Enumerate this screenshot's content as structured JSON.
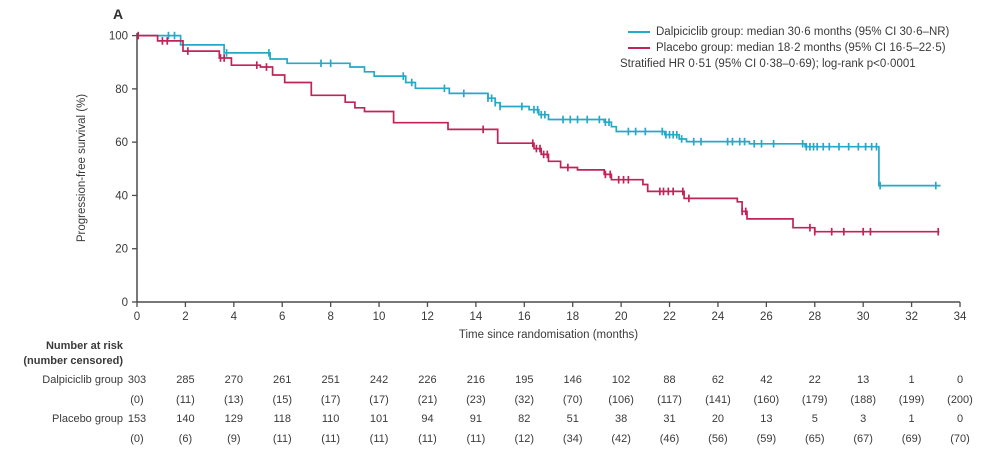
{
  "panel_label": "A",
  "colors": {
    "dalpiciclib": "#26a8c8",
    "placebo": "#c22357",
    "axis": "#4c4c4c",
    "text": "#3a3a3a"
  },
  "legend": {
    "items": [
      {
        "label": "Dalpiciclib group: median 30·6 months (95% CI 30·6–NR)",
        "color_key": "dalpiciclib"
      },
      {
        "label": "Placebo group: median 18·2 months (95% CI 16·5–22·5)",
        "color_key": "placebo"
      }
    ],
    "note": "Stratified HR 0·51 (95% CI 0·38–0·69); log-rank p<0·0001"
  },
  "chart_data": {
    "type": "line",
    "subtype": "kaplan-meier-step",
    "title": "",
    "xlabel": "Time since randomisation (months)",
    "ylabel": "Progression-free survival (%)",
    "xlim": [
      0,
      34
    ],
    "ylim": [
      0,
      100
    ],
    "grid": false,
    "legend_position": "top-right",
    "x_ticks": [
      0,
      2,
      4,
      6,
      8,
      10,
      12,
      14,
      16,
      18,
      20,
      22,
      24,
      26,
      28,
      30,
      32,
      34
    ],
    "y_ticks": [
      0,
      20,
      40,
      60,
      80,
      100
    ],
    "series": [
      {
        "name": "Dalpiciclib group",
        "color": "#26a8c8",
        "start": [
          0,
          100
        ],
        "end_time": 33.2,
        "steps": [
          [
            1.8,
            96.5
          ],
          [
            3.6,
            93.5
          ],
          [
            5.5,
            91.2
          ],
          [
            6.2,
            89.6
          ],
          [
            8.8,
            88.2
          ],
          [
            9.4,
            86.4
          ],
          [
            9.8,
            84.8
          ],
          [
            11.1,
            82.4
          ],
          [
            11.5,
            80.2
          ],
          [
            12.9,
            78.3
          ],
          [
            14.5,
            76.5
          ],
          [
            14.8,
            74.8
          ],
          [
            15.0,
            73.4
          ],
          [
            16.2,
            72.2
          ],
          [
            16.6,
            70.3
          ],
          [
            17.0,
            68.5
          ],
          [
            19.3,
            67.5
          ],
          [
            19.6,
            65.8
          ],
          [
            19.8,
            64.0
          ],
          [
            21.8,
            62.8
          ],
          [
            22.4,
            61.2
          ],
          [
            22.7,
            60.2
          ],
          [
            25.3,
            59.4
          ],
          [
            27.6,
            58.3
          ],
          [
            30.65,
            43.7
          ]
        ],
        "censor_times": [
          1.3,
          1.55,
          3.7,
          5.45,
          7.6,
          8.0,
          11.0,
          11.35,
          12.7,
          13.5,
          14.5,
          14.65,
          14.8,
          15.0,
          15.9,
          16.4,
          16.55,
          16.7,
          16.85,
          17.6,
          17.9,
          18.2,
          18.6,
          19.1,
          19.35,
          19.5,
          20.3,
          20.6,
          21.0,
          21.7,
          21.85,
          22.0,
          22.15,
          22.3,
          22.5,
          23.0,
          23.3,
          24.4,
          24.6,
          24.9,
          25.1,
          25.5,
          25.8,
          26.3,
          27.5,
          27.65,
          27.8,
          27.95,
          28.1,
          28.35,
          28.6,
          29.0,
          29.4,
          29.8,
          30.1,
          30.35,
          30.55,
          30.7,
          33.0
        ]
      },
      {
        "name": "Placebo group",
        "color": "#c22357",
        "start": [
          0,
          100
        ],
        "end_time": 33.15,
        "steps": [
          [
            0.85,
            98.0
          ],
          [
            1.9,
            94.2
          ],
          [
            3.4,
            91.6
          ],
          [
            3.9,
            88.9
          ],
          [
            5.1,
            88.2
          ],
          [
            5.6,
            85.2
          ],
          [
            6.1,
            82.4
          ],
          [
            7.2,
            77.6
          ],
          [
            8.6,
            75.0
          ],
          [
            9.0,
            72.9
          ],
          [
            9.4,
            71.5
          ],
          [
            10.6,
            67.3
          ],
          [
            12.85,
            64.8
          ],
          [
            14.9,
            59.6
          ],
          [
            16.4,
            57.6
          ],
          [
            16.7,
            55.4
          ],
          [
            17.0,
            52.8
          ],
          [
            17.5,
            50.5
          ],
          [
            18.2,
            49.6
          ],
          [
            19.3,
            47.9
          ],
          [
            19.6,
            45.9
          ],
          [
            20.9,
            44.1
          ],
          [
            21.1,
            41.5
          ],
          [
            22.6,
            38.9
          ],
          [
            24.8,
            37.6
          ],
          [
            25.0,
            34.0
          ],
          [
            25.2,
            31.2
          ],
          [
            27.1,
            27.9
          ],
          [
            28.0,
            26.4
          ]
        ],
        "censor_times": [
          0.05,
          1.05,
          1.25,
          2.1,
          3.45,
          3.6,
          4.95,
          5.35,
          14.3,
          16.35,
          16.5,
          16.65,
          16.8,
          16.95,
          17.8,
          19.35,
          19.55,
          19.9,
          20.1,
          20.3,
          21.6,
          21.75,
          21.95,
          22.15,
          22.55,
          22.8,
          25.0,
          25.15,
          27.8,
          28.0,
          28.7,
          29.2,
          30.0,
          30.3,
          33.1
        ]
      }
    ]
  },
  "risk_table": {
    "header_line1": "Number at risk",
    "header_line2": "(number censored)",
    "time_points": [
      0,
      2,
      4,
      6,
      8,
      10,
      12,
      14,
      16,
      18,
      20,
      22,
      24,
      26,
      28,
      30,
      32,
      34
    ],
    "rows": [
      {
        "label": "Dalpiciclib group",
        "at_risk": [
          "303",
          "285",
          "270",
          "261",
          "251",
          "242",
          "226",
          "216",
          "195",
          "146",
          "102",
          "88",
          "62",
          "42",
          "22",
          "13",
          "1",
          "0"
        ],
        "censored": [
          "(0)",
          "(11)",
          "(13)",
          "(15)",
          "(17)",
          "(17)",
          "(21)",
          "(23)",
          "(32)",
          "(70)",
          "(106)",
          "(117)",
          "(141)",
          "(160)",
          "(179)",
          "(188)",
          "(199)",
          "(200)"
        ]
      },
      {
        "label": "Placebo group",
        "at_risk": [
          "153",
          "140",
          "129",
          "118",
          "110",
          "101",
          "94",
          "91",
          "82",
          "51",
          "38",
          "31",
          "20",
          "13",
          "5",
          "3",
          "1",
          "0"
        ],
        "censored": [
          "(0)",
          "(6)",
          "(9)",
          "(11)",
          "(11)",
          "(11)",
          "(11)",
          "(11)",
          "(12)",
          "(34)",
          "(42)",
          "(46)",
          "(56)",
          "(59)",
          "(65)",
          "(67)",
          "(69)",
          "(70)"
        ]
      }
    ]
  }
}
